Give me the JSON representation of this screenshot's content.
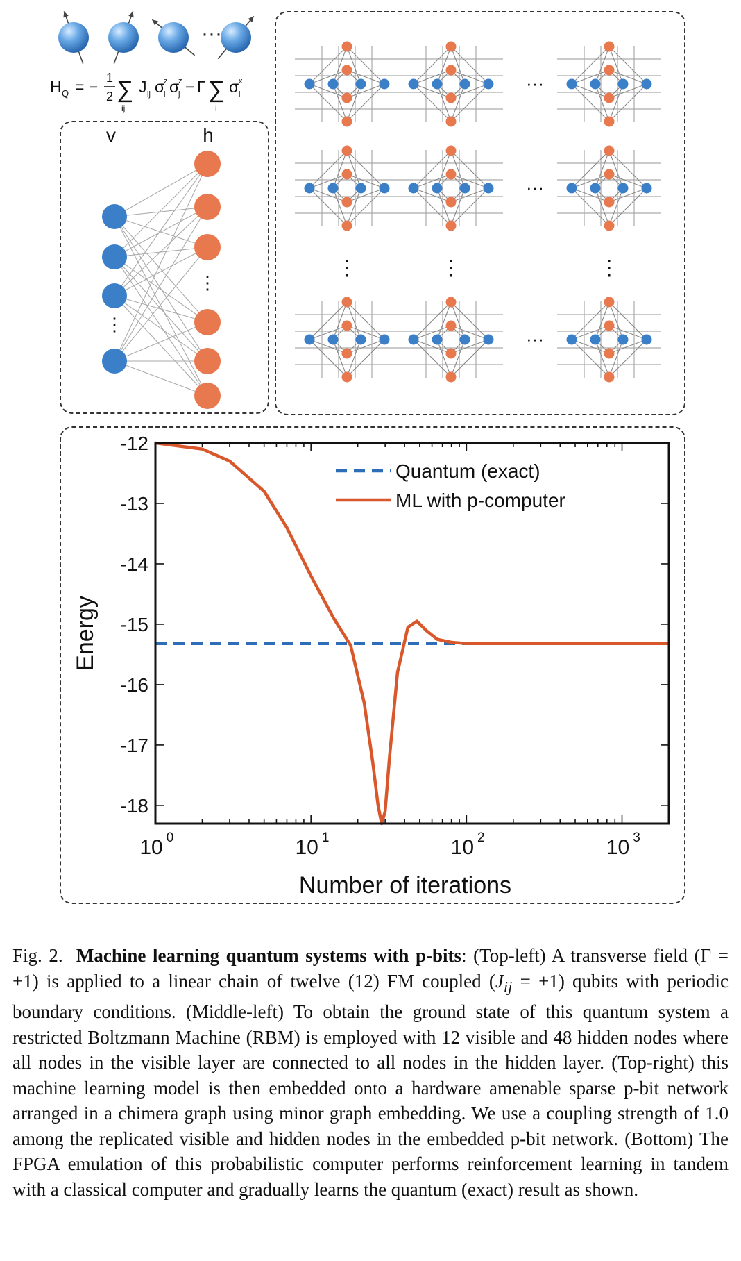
{
  "figure": {
    "hamiltonian": {
      "H": "H",
      "Q": "Q",
      "eq": "= −",
      "half_num": "1",
      "half_den": "2",
      "sum": "∑",
      "sub_ij": "ij",
      "J": "J",
      "J_sub": "ij",
      "sigma": "σ",
      "sup_z": "z",
      "sub_i": "i",
      "sub_j": "j",
      "minus": "−",
      "Gamma": "Γ",
      "sub_i2": "i",
      "sup_x": "x"
    },
    "rbm": {
      "visible_label": "v",
      "hidden_label": "h",
      "ellipsis": "⋮"
    },
    "chimera": {
      "h_ellipsis": "···",
      "v_ellipsis": "⋮"
    },
    "colors": {
      "visible": "#3A7FC8",
      "hidden": "#E8794F",
      "quantum_line": "#2E6DB8",
      "ml_line": "#D9582B"
    }
  },
  "chart_data": {
    "type": "line",
    "xscale": "log",
    "xlim": [
      1,
      2000
    ],
    "ylim": [
      -18.3,
      -12
    ],
    "xlabel": "Number of iterations",
    "ylabel": "Energy",
    "xticks": [
      {
        "value": 1,
        "base": "10",
        "exp": "0"
      },
      {
        "value": 10,
        "base": "10",
        "exp": "1"
      },
      {
        "value": 100,
        "base": "10",
        "exp": "2"
      },
      {
        "value": 1000,
        "base": "10",
        "exp": "3"
      }
    ],
    "yticks": [
      {
        "value": -12,
        "label": "-12"
      },
      {
        "value": -13,
        "label": "-13"
      },
      {
        "value": -14,
        "label": "-14"
      },
      {
        "value": -15,
        "label": "-15"
      },
      {
        "value": -16,
        "label": "-16"
      },
      {
        "value": -17,
        "label": "-17"
      },
      {
        "value": -18,
        "label": "-18"
      }
    ],
    "legend": "top-right",
    "series": [
      {
        "name": "Quantum (exact)",
        "style": "dashed",
        "color": "#2E6DB8",
        "x": [
          1,
          2000
        ],
        "y": [
          -15.32,
          -15.32
        ]
      },
      {
        "name": "ML with p-computer",
        "style": "solid",
        "color": "#D9582B",
        "x": [
          1,
          2,
          3,
          5,
          7,
          10,
          14,
          18,
          22,
          25,
          27,
          28.5,
          30,
          32,
          36,
          42,
          48,
          55,
          65,
          80,
          100,
          200,
          500,
          1000,
          2000
        ],
        "y": [
          -12,
          -12.1,
          -12.3,
          -12.8,
          -13.4,
          -14.2,
          -14.9,
          -15.35,
          -16.3,
          -17.3,
          -18.0,
          -18.3,
          -18.1,
          -17.2,
          -15.8,
          -15.05,
          -14.95,
          -15.1,
          -15.25,
          -15.3,
          -15.32,
          -15.32,
          -15.32,
          -15.32,
          -15.32
        ]
      }
    ]
  },
  "caption": {
    "prefix": "Fig. 2.",
    "title": "Machine learning quantum systems with p-bits",
    "p1": ": (Top-left) A transverse field (Γ = +1) is applied to a linear chain of twelve (12) FM coupled (",
    "J": "J",
    "J_sub": "ij",
    "p2": " = +1) qubits with periodic boundary conditions. (Middle-left) To obtain the ground state of this quantum system a restricted Boltzmann Machine (RBM) is employed with 12 visible and 48 hidden nodes where all nodes in the visible layer are connected to all nodes in the hidden layer. (Top-right) this machine learning model is then embedded onto a hardware amenable sparse p-bit network arranged in a chimera graph using minor graph embedding. We use a coupling strength of 1.0 among the replicated visible and hidden nodes in the embedded p-bit network. (Bottom) The FPGA emulation of this probabilistic computer performs reinforcement learning in tandem with a classical computer and gradually learns the quantum (exact) result as shown."
  }
}
